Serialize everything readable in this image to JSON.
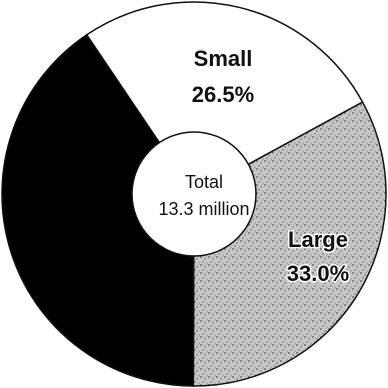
{
  "chart_data": {
    "type": "pie",
    "style": "donut",
    "center_label": {
      "line1": "Total",
      "line2": "13.3 million"
    },
    "slices": [
      {
        "label": "Small",
        "value_label": "26.5%",
        "value": 26.5,
        "color": "#ffffff",
        "pattern": "none"
      },
      {
        "label": "Large",
        "value_label": "33.0%",
        "value": 33.0,
        "color": "#b8b8b8",
        "pattern": "stipple"
      },
      {
        "label": "",
        "value_label": "",
        "value": 40.5,
        "color": "#000000",
        "pattern": "none"
      }
    ]
  }
}
